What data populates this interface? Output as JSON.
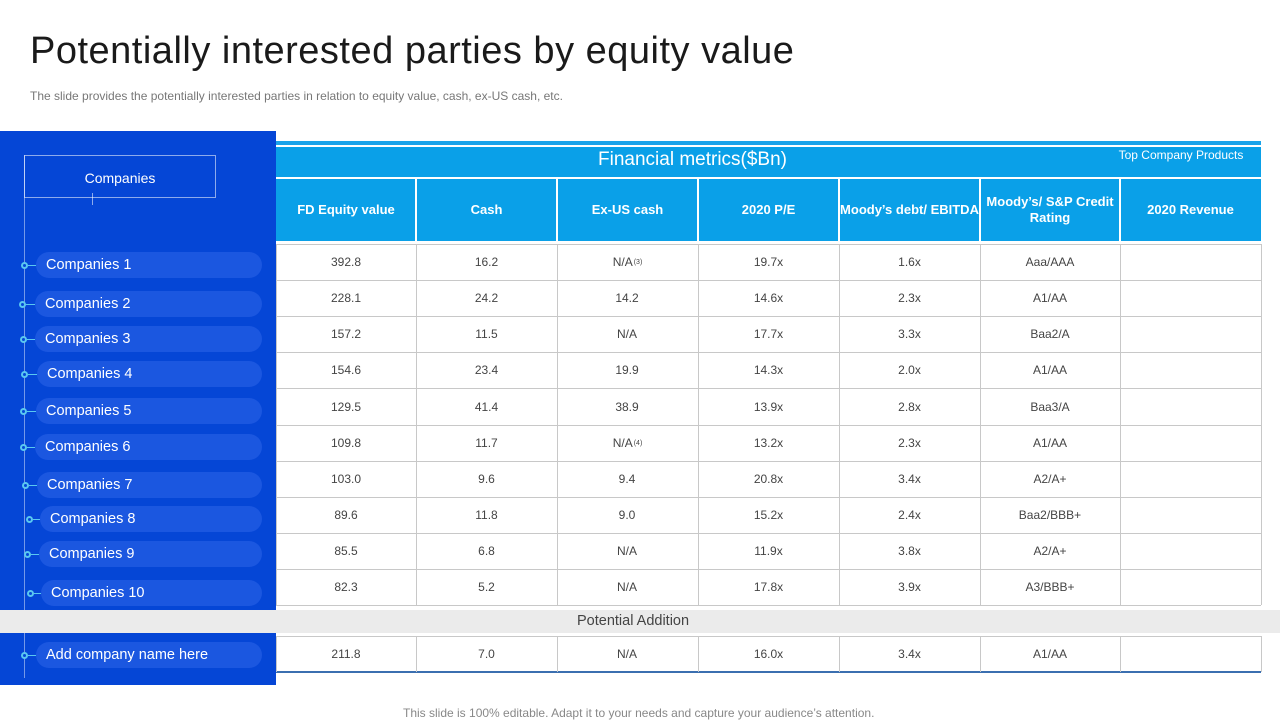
{
  "title": "Potentially interested parties by equity value",
  "subtitle": "The slide provides the potentially interested parties in relation to equity value,  cash, ex-US cash, etc.",
  "sidebar": {
    "header": "Companies",
    "companies": [
      "Companies 1",
      "Companies 2",
      "Companies 3",
      "Companies 4",
      "Companies 5",
      "Companies 6",
      "Companies 7",
      "Companies 8",
      "Companies 9",
      "Companies 10"
    ],
    "addition": "Add company name here"
  },
  "table": {
    "group_header": "Financial metrics($Bn)",
    "top_products_header": "Top Company Products",
    "columns": [
      "FD Equity value",
      "Cash",
      "Ex-US cash",
      "2020 P/E",
      "Moody’s debt/ EBITDA",
      "Moody’s/ S&P Credit Rating",
      "2020 Revenue"
    ],
    "rows": [
      {
        "equity": "392.8",
        "cash": "16.2",
        "exus": "N/A",
        "exus_note": "(3)",
        "pe": "19.7x",
        "debt": "1.6x",
        "rating": "Aaa/AAA",
        "revenue": ""
      },
      {
        "equity": "228.1",
        "cash": "24.2",
        "exus": "14.2",
        "exus_note": "",
        "pe": "14.6x",
        "debt": "2.3x",
        "rating": "A1/AA",
        "revenue": ""
      },
      {
        "equity": "157.2",
        "cash": "11.5",
        "exus": "N/A",
        "exus_note": "",
        "pe": "17.7x",
        "debt": "3.3x",
        "rating": "Baa2/A",
        "revenue": ""
      },
      {
        "equity": "154.6",
        "cash": "23.4",
        "exus": "19.9",
        "exus_note": "",
        "pe": "14.3x",
        "debt": "2.0x",
        "rating": "A1/AA",
        "revenue": ""
      },
      {
        "equity": "129.5",
        "cash": "41.4",
        "exus": "38.9",
        "exus_note": "",
        "pe": "13.9x",
        "debt": "2.8x",
        "rating": "Baa3/A",
        "revenue": ""
      },
      {
        "equity": "109.8",
        "cash": "11.7",
        "exus": "N/A",
        "exus_note": "(4)",
        "pe": "13.2x",
        "debt": "2.3x",
        "rating": "A1/AA",
        "revenue": ""
      },
      {
        "equity": "103.0",
        "cash": "9.6",
        "exus": "9.4",
        "exus_note": "",
        "pe": "20.8x",
        "debt": "3.4x",
        "rating": "A2/A+",
        "revenue": ""
      },
      {
        "equity": "89.6",
        "cash": "11.8",
        "exus": "9.0",
        "exus_note": "",
        "pe": "15.2x",
        "debt": "2.4x",
        "rating": "Baa2/BBB+",
        "revenue": ""
      },
      {
        "equity": "85.5",
        "cash": "6.8",
        "exus": "N/A",
        "exus_note": "",
        "pe": "11.9x",
        "debt": "3.8x",
        "rating": "A2/A+",
        "revenue": ""
      },
      {
        "equity": "82.3",
        "cash": "5.2",
        "exus": "N/A",
        "exus_note": "",
        "pe": "17.8x",
        "debt": "3.9x",
        "rating": "A3/BBB+",
        "revenue": ""
      }
    ],
    "potential_addition_label": "Potential Addition",
    "addition_row": {
      "equity": "211.8",
      "cash": "7.0",
      "exus": "N/A",
      "exus_note": "",
      "pe": "16.0x",
      "debt": "3.4x",
      "rating": "A1/AA",
      "revenue": ""
    }
  },
  "footer": "This slide is 100% editable. Adapt it to your needs and capture your audience’s attention.",
  "colors": {
    "sidebar": "#0546d6",
    "header": "#0aa0e8",
    "pill": "#1b57e0"
  }
}
